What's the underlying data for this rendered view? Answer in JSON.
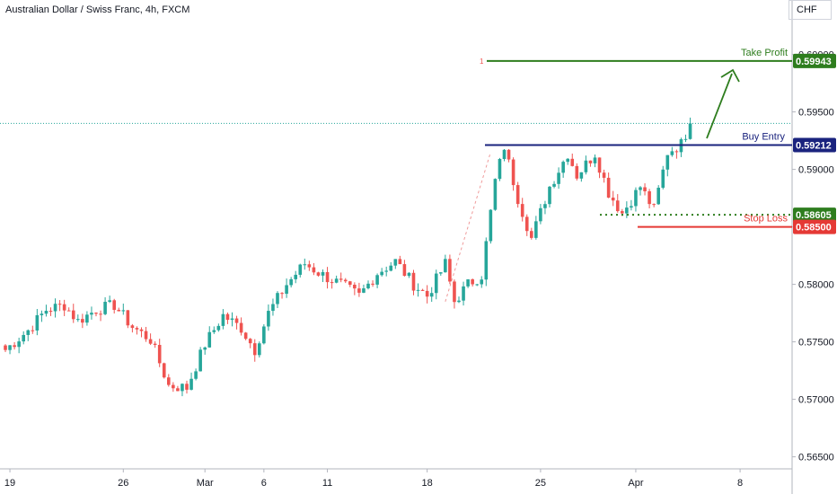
{
  "header": {
    "title": "Australian Dollar / Swiss Franc, 4h, FXCM",
    "currency": "CHF"
  },
  "chart_data": {
    "type": "candlestick",
    "symbol": "AUDCHF",
    "timeframe": "4h",
    "y_ticks": [
      "0.60000",
      "0.59500",
      "0.59000",
      "0.58500",
      "0.58000",
      "0.57500",
      "0.57000",
      "0.56500"
    ],
    "y_tick_values": [
      0.6,
      0.595,
      0.59,
      0.585,
      0.58,
      0.575,
      0.57,
      0.565
    ],
    "ylim": [
      0.5643,
      0.6052
    ],
    "x_ticks": [
      "19",
      "26",
      "Mar",
      "6",
      "11",
      "18",
      "25",
      "Apr",
      "8"
    ],
    "x_tick_index": [
      1,
      26,
      44,
      57,
      71,
      93,
      118,
      139,
      162
    ],
    "last_price": 0.594,
    "path_anchors": [
      [
        0,
        0.5743
      ],
      [
        5,
        0.576
      ],
      [
        9,
        0.5778
      ],
      [
        13,
        0.5782
      ],
      [
        16,
        0.5768
      ],
      [
        20,
        0.5778
      ],
      [
        24,
        0.5782
      ],
      [
        28,
        0.5763
      ],
      [
        32,
        0.5752
      ],
      [
        36,
        0.5712
      ],
      [
        40,
        0.571
      ],
      [
        44,
        0.5748
      ],
      [
        48,
        0.5773
      ],
      [
        52,
        0.5762
      ],
      [
        55,
        0.5743
      ],
      [
        58,
        0.5775
      ],
      [
        62,
        0.58
      ],
      [
        66,
        0.5818
      ],
      [
        70,
        0.5808
      ],
      [
        74,
        0.58
      ],
      [
        78,
        0.579
      ],
      [
        82,
        0.581
      ],
      [
        86,
        0.582
      ],
      [
        90,
        0.58
      ],
      [
        93,
        0.579
      ],
      [
        97,
        0.5818
      ],
      [
        99,
        0.5785
      ],
      [
        102,
        0.58
      ],
      [
        105,
        0.5808
      ],
      [
        108,
        0.589
      ],
      [
        110,
        0.592
      ],
      [
        113,
        0.5875
      ],
      [
        116,
        0.584
      ],
      [
        120,
        0.5885
      ],
      [
        124,
        0.5914
      ],
      [
        126,
        0.5895
      ],
      [
        130,
        0.5914
      ],
      [
        133,
        0.588
      ],
      [
        136,
        0.5862
      ],
      [
        140,
        0.5885
      ],
      [
        143,
        0.5865
      ],
      [
        146,
        0.5915
      ],
      [
        149,
        0.5922
      ],
      [
        151,
        0.594
      ]
    ],
    "annotations": [
      {
        "label": "Take Profit",
        "value": "0.59943",
        "price": 0.59943,
        "color": "#2e7d1e"
      },
      {
        "label": "Buy Entry",
        "value": "0.59212",
        "price": 0.59212,
        "color": "#1a237e"
      },
      {
        "label": "Stop Loss",
        "value": "0.58500",
        "price": 0.585,
        "color": "#e53935"
      },
      {
        "label": "",
        "value": "0.58605",
        "price": 0.58605,
        "color": "#2e7d1e"
      }
    ],
    "marker": "1",
    "colors": {
      "up": "#26a69a",
      "down": "#ef5350",
      "take_profit": "#2e7d1e",
      "buy_entry": "#1a237e",
      "stop_loss": "#e53935",
      "last_price_line": "#26a69a"
    }
  }
}
